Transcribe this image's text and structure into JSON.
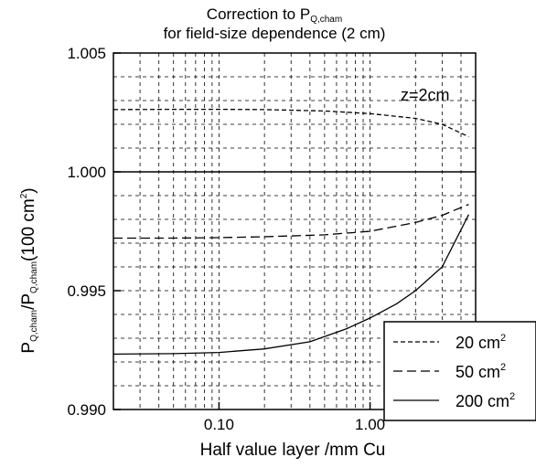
{
  "chart_data": {
    "type": "line",
    "title_line1": "Correction to P",
    "title_sub": "Q,cham",
    "title_line2": "for field-size dependence (2 cm)",
    "xlabel": "Half value layer /mm Cu",
    "ylabel": {
      "p1": "P",
      "s1": "Q,cham",
      "mid": "/P",
      "s2": "Q,cham",
      "rest": "(100 cm",
      "sup": "2",
      "end": ")"
    },
    "x_scale": "log",
    "xlim": [
      0.02,
      5.0
    ],
    "ylim": [
      0.99,
      1.005
    ],
    "x_ticks": [
      {
        "value": 0.1,
        "label": "0.10"
      },
      {
        "value": 1.0,
        "label": "1.00"
      }
    ],
    "y_ticks": [
      {
        "value": 0.99,
        "label": "0.990"
      },
      {
        "value": 0.995,
        "label": "0.995"
      },
      {
        "value": 1.0,
        "label": "1.000"
      },
      {
        "value": 1.005,
        "label": "1.005"
      }
    ],
    "grid": true,
    "annotation": "z=2cm",
    "reference_line": 1.0,
    "legend": {
      "placement": "bottom-right"
    },
    "series": [
      {
        "name": "20 cm",
        "sup": "2",
        "dash": "short",
        "x": [
          0.02,
          0.05,
          0.1,
          0.2,
          0.5,
          1.0,
          2.0,
          3.0,
          4.5
        ],
        "y": [
          1.00262,
          1.00263,
          1.00263,
          1.00262,
          1.00256,
          1.00245,
          1.00225,
          1.002,
          1.00148
        ]
      },
      {
        "name": "50 cm",
        "sup": "2",
        "dash": "long",
        "x": [
          0.02,
          0.05,
          0.1,
          0.2,
          0.5,
          1.0,
          2.0,
          3.0,
          4.5
        ],
        "y": [
          0.99721,
          0.99721,
          0.99723,
          0.99727,
          0.99735,
          0.9975,
          0.99787,
          0.99817,
          0.99863
        ]
      },
      {
        "name": "200 cm",
        "sup": "2",
        "dash": "solid",
        "x": [
          0.02,
          0.05,
          0.1,
          0.2,
          0.4,
          0.7,
          1.0,
          1.5,
          2.0,
          3.0,
          4.5
        ],
        "y": [
          0.99233,
          0.99235,
          0.9924,
          0.99255,
          0.99285,
          0.9934,
          0.99385,
          0.99445,
          0.995,
          0.996,
          0.9982
        ]
      }
    ]
  }
}
